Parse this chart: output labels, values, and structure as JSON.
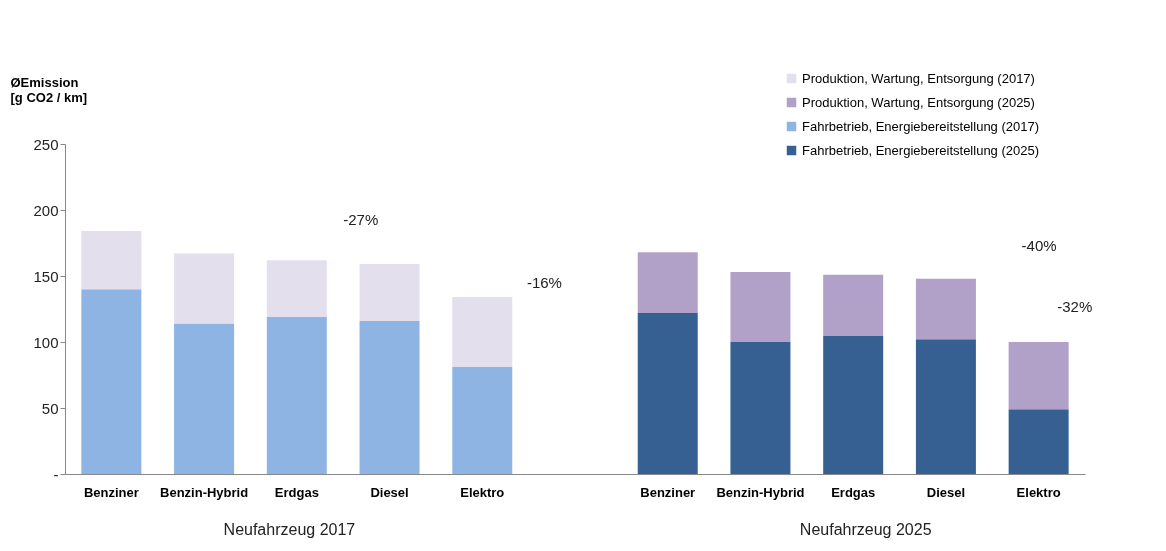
{
  "chart_data": {
    "type": "bar",
    "stacked": true,
    "ylabel": "ØEmission\n[g CO2 / km]",
    "categories": [
      "Benziner",
      "Benzin-Hybrid",
      "Erdgas",
      "Diesel",
      "Elektro",
      null,
      "Benziner",
      "Benzin-Hybrid",
      "Erdgas",
      "Diesel",
      "Elektro"
    ],
    "series": [
      {
        "name": "Fahrbetrieb, Energiebereitstellung (2017)",
        "color": "#8db4e2",
        "values": [
          140,
          114,
          119,
          116,
          81,
          null,
          null,
          null,
          null,
          null,
          null
        ]
      },
      {
        "name": "Fahrbetrieb, Energiebereitstellung (2025)",
        "color": "#366092",
        "values": [
          null,
          null,
          null,
          null,
          null,
          null,
          122,
          100,
          105,
          102,
          49
        ]
      },
      {
        "name": "Produktion, Wartung, Entsorgung (2017)",
        "color": "#e4dfec",
        "values": [
          44,
          53,
          43,
          43,
          53,
          null,
          null,
          null,
          null,
          null,
          null
        ]
      },
      {
        "name": "Produktion, Wartung, Entsorgung (2025)",
        "color": "#b1a0c7",
        "values": [
          null,
          null,
          null,
          null,
          null,
          null,
          46,
          53,
          46,
          46,
          51
        ]
      }
    ],
    "ylim": [
      0,
      250
    ],
    "yticks": [
      {
        "value": 0,
        "label": "-"
      },
      50,
      100,
      150,
      200,
      250
    ],
    "grid": false,
    "legend": "top right",
    "annotations": [
      "-27%",
      "-16%",
      "-40%",
      "-32%",
      "Neufahrzeug 2017",
      "Neufahrzeug 2025"
    ]
  }
}
